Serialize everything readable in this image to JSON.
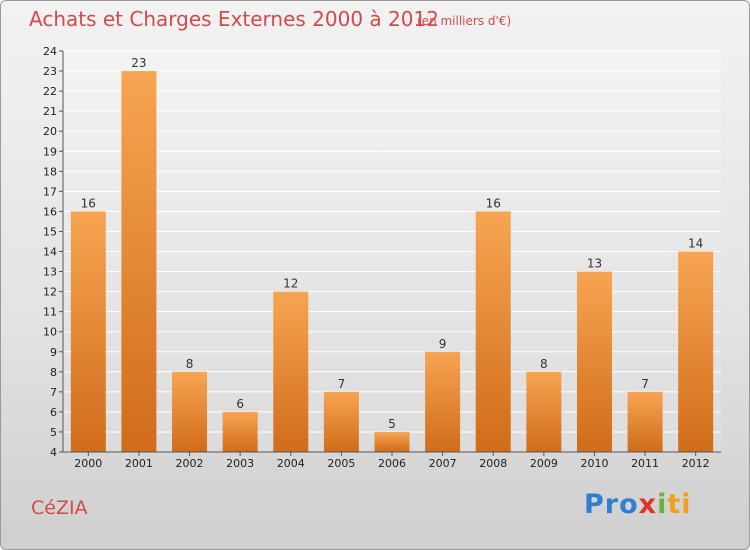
{
  "header": {
    "title": "Achats et Charges Externes 2000 à 2012",
    "subtitle": "(en milliers d'€)"
  },
  "footer": {
    "place": "CéZIA",
    "logo_text": "Proxiti"
  },
  "colors": {
    "bar_light": "#f7a553",
    "bar_dark": "#d06c1a",
    "title": "#d44a4a"
  },
  "chart_data": {
    "type": "bar",
    "title": "Achats et Charges Externes 2000 à 2012",
    "subtitle": "(en milliers d'€)",
    "categories": [
      "2000",
      "2001",
      "2002",
      "2003",
      "2004",
      "2005",
      "2006",
      "2007",
      "2008",
      "2009",
      "2010",
      "2011",
      "2012"
    ],
    "values": [
      16,
      23,
      8,
      6,
      12,
      7,
      5,
      9,
      16,
      8,
      13,
      7,
      14
    ],
    "ylim": [
      4,
      24
    ],
    "yticks": [
      4,
      5,
      6,
      7,
      8,
      9,
      10,
      11,
      12,
      13,
      14,
      15,
      16,
      17,
      18,
      19,
      20,
      21,
      22,
      23,
      24
    ],
    "xlabel": "",
    "ylabel": "",
    "grid": true,
    "data_labels": true
  }
}
